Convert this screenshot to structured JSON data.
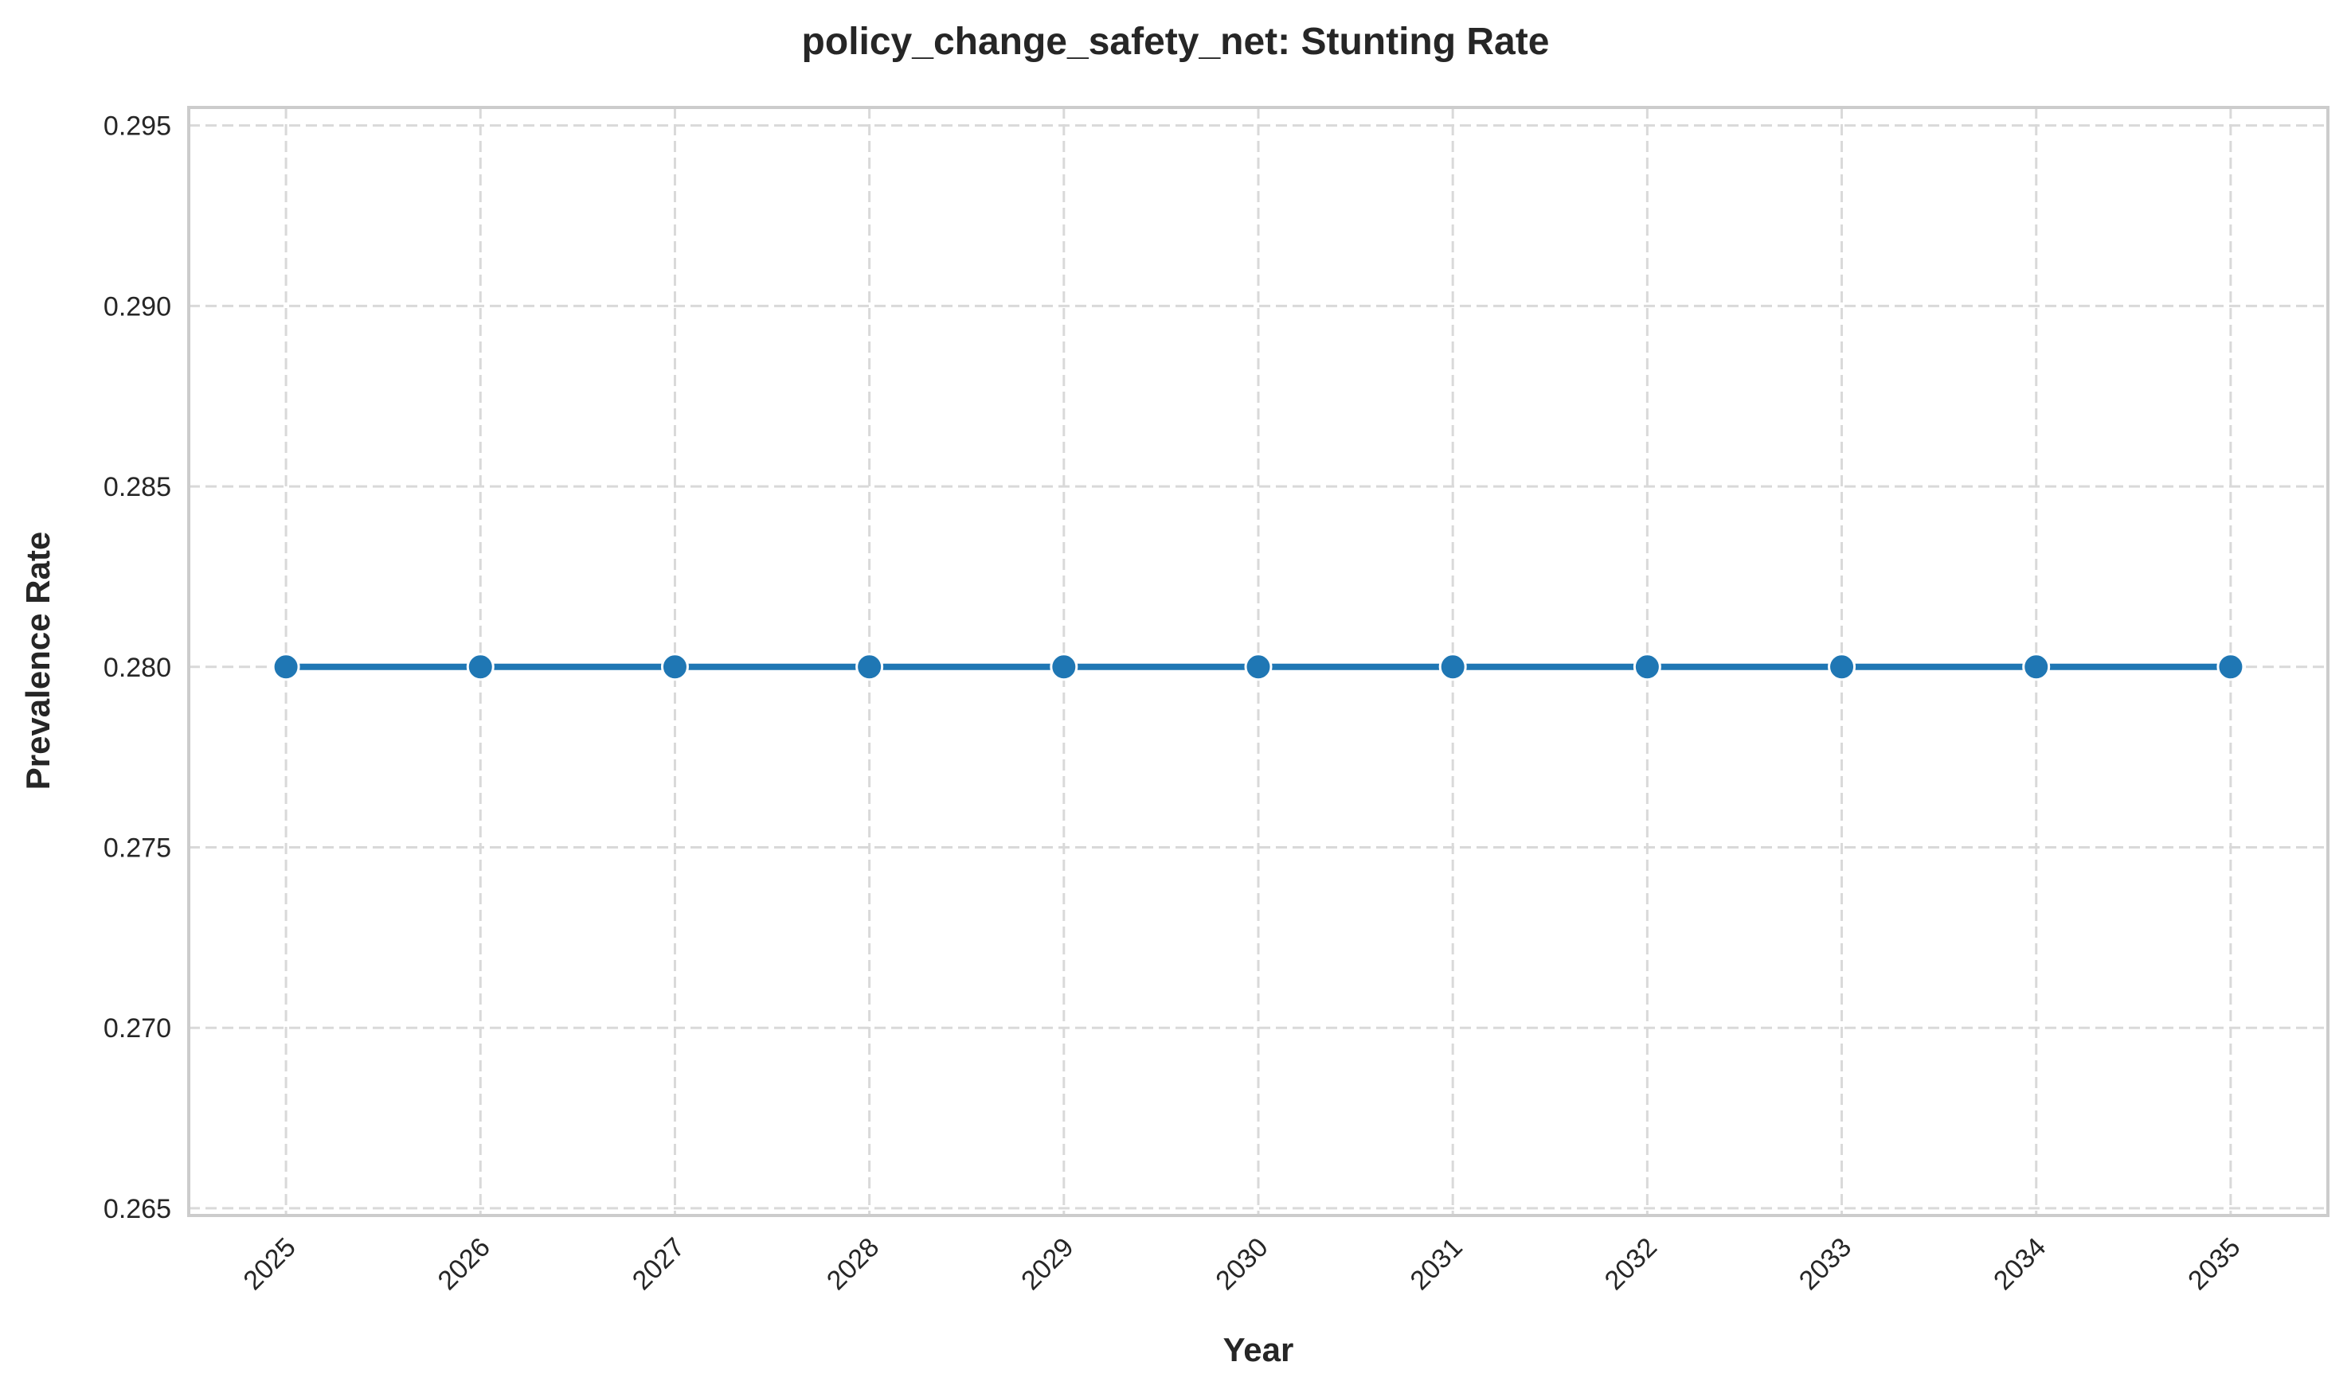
{
  "chart_data": {
    "type": "line",
    "title": "policy_change_safety_net: Stunting Rate",
    "xlabel": "Year",
    "ylabel": "Prevalence Rate",
    "x": [
      2025,
      2026,
      2027,
      2028,
      2029,
      2030,
      2031,
      2032,
      2033,
      2034,
      2035
    ],
    "x_tick_labels": [
      "2025",
      "2026",
      "2027",
      "2028",
      "2029",
      "2030",
      "2031",
      "2032",
      "2033",
      "2034",
      "2035"
    ],
    "y_ticks": [
      0.265,
      0.27,
      0.275,
      0.28,
      0.285,
      0.29,
      0.295
    ],
    "y_tick_labels": [
      "0.265",
      "0.270",
      "0.275",
      "0.280",
      "0.285",
      "0.290",
      "0.295"
    ],
    "ylim": [
      0.2648,
      0.2955
    ],
    "xlim": [
      2024.5,
      2035.5
    ],
    "series": [
      {
        "values": [
          0.28,
          0.28,
          0.28,
          0.28,
          0.28,
          0.28,
          0.28,
          0.28,
          0.28,
          0.28,
          0.28
        ],
        "color": "#1f77b4",
        "marker": "circle"
      }
    ],
    "grid": true,
    "x_tick_rotation": "45 degrees",
    "legend": false
  }
}
